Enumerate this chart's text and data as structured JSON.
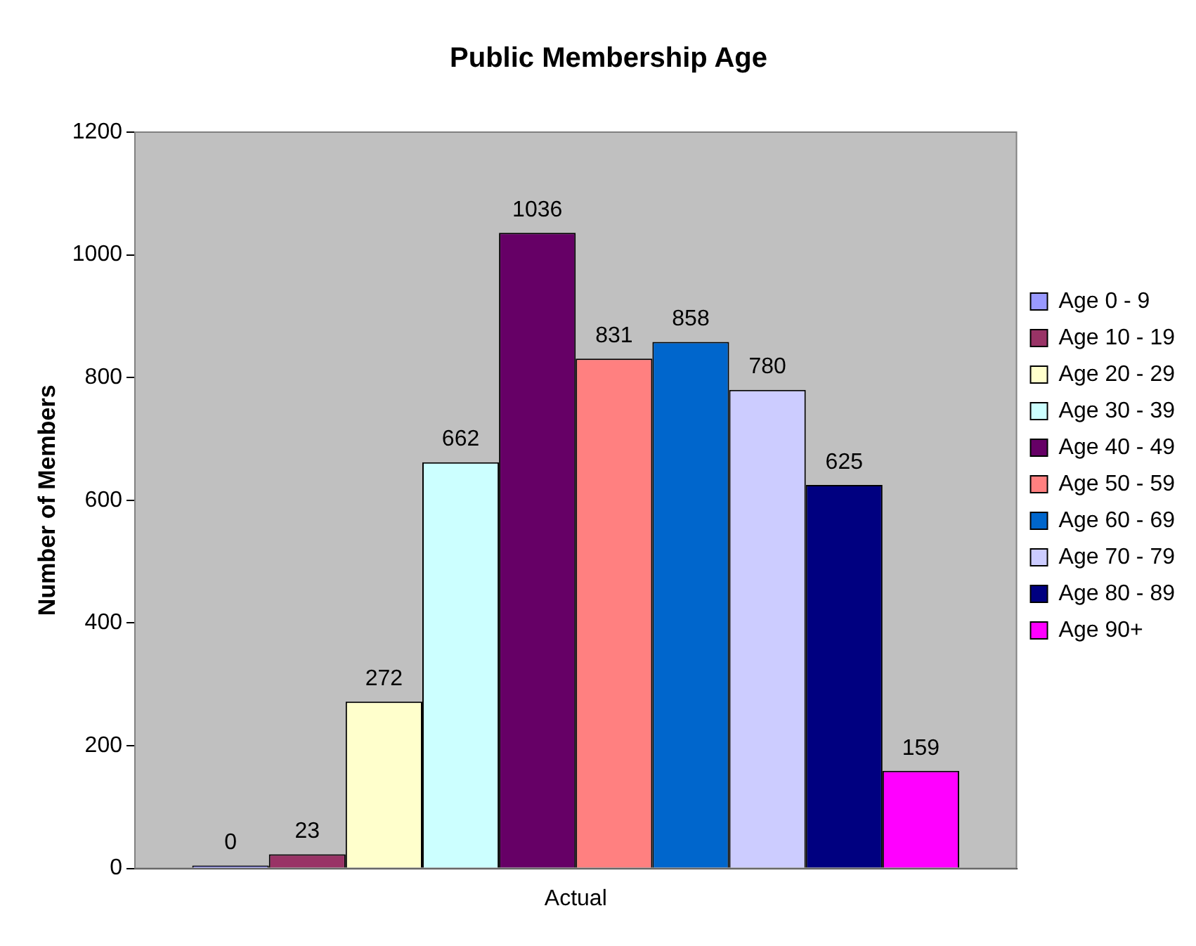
{
  "chart_data": {
    "type": "bar",
    "title": "Public Membership Age",
    "xlabel": "Actual",
    "ylabel": "Number of Members",
    "categories": [
      null
    ],
    "series": [
      {
        "name": "Age 0 - 9",
        "color": "#9999ff",
        "values": [
          0
        ]
      },
      {
        "name": "Age 10 - 19",
        "color": "#993366",
        "values": [
          23
        ]
      },
      {
        "name": "Age 20 - 29",
        "color": "#ffffcc",
        "values": [
          272
        ]
      },
      {
        "name": "Age 30 - 39",
        "color": "#ccffff",
        "values": [
          662
        ]
      },
      {
        "name": "Age 40 - 49",
        "color": "#660066",
        "values": [
          1036
        ]
      },
      {
        "name": "Age 50 - 59",
        "color": "#ff8080",
        "values": [
          831
        ]
      },
      {
        "name": "Age 60 - 69",
        "color": "#0066cc",
        "values": [
          858
        ]
      },
      {
        "name": "Age 70 - 79",
        "color": "#ccccff",
        "values": [
          780
        ]
      },
      {
        "name": "Age 80 - 89",
        "color": "#000080",
        "values": [
          625
        ]
      },
      {
        "name": "Age 90+",
        "color": "#ff00ff",
        "values": [
          159
        ]
      }
    ],
    "ylim": [
      0,
      1200
    ],
    "yticks": [
      0,
      200,
      400,
      600,
      800,
      1000,
      1200
    ],
    "grid": false,
    "legend": "right",
    "data_labels": true
  }
}
